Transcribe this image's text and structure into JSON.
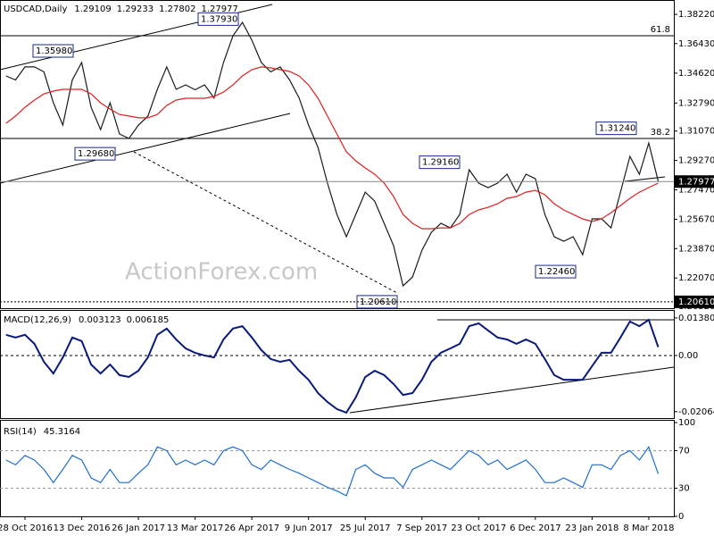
{
  "chart_data": [
    {
      "type": "line",
      "title": "USDCAD,Daily",
      "header_values": [
        1.29109,
        1.29233,
        1.27802,
        1.27977
      ],
      "watermark": "ActionForex.com",
      "categories": [
        null,
        null,
        "28 Oct 2016",
        null,
        null,
        null,
        null,
        null,
        "13 Dec 2016",
        null,
        null,
        null,
        null,
        null,
        "26 Jan 2017",
        null,
        null,
        null,
        null,
        null,
        "13 Mar 2017",
        null,
        null,
        null,
        null,
        null,
        "26 Apr 2017",
        null,
        null,
        null,
        null,
        null,
        "9 Jun 2017",
        null,
        null,
        null,
        null,
        null,
        "25 Jul 2017",
        null,
        null,
        null,
        null,
        null,
        "7 Sep 2017",
        null,
        null,
        null,
        null,
        null,
        "23 Oct 2017",
        null,
        null,
        null,
        null,
        null,
        "6 Dec 2017",
        null,
        null,
        null,
        null,
        null,
        "23 Jan 2018",
        null,
        null,
        null,
        null,
        null,
        "8 Mar 2018",
        null
      ],
      "series": [
        {
          "color": "#1a1a1a",
          "values": [
            1.3445,
            1.342,
            1.35,
            1.35,
            1.347,
            1.328,
            1.3144,
            1.342,
            1.3527,
            1.3253,
            1.3116,
            1.328,
            1.3089,
            1.3062,
            1.3144,
            1.3198,
            1.3363,
            1.35,
            1.3363,
            1.339,
            1.336,
            1.339,
            1.331,
            1.3527,
            1.369,
            1.3773,
            1.3664,
            1.3527,
            1.347,
            1.35,
            1.342,
            1.331,
            1.3144,
            1.3007,
            1.2788,
            1.2596,
            1.246,
            1.2596,
            1.2733,
            1.2678,
            1.2542,
            1.2405,
            1.2159,
            1.2213,
            1.2377,
            1.2487,
            1.2542,
            1.2514,
            1.2596,
            1.287,
            1.2788,
            1.276,
            1.2788,
            1.2843,
            1.2733,
            1.2843,
            1.2815,
            1.2596,
            1.246,
            1.2432,
            1.246,
            1.235,
            1.2569,
            1.2569,
            1.2514,
            1.2733,
            1.2952,
            1.2843,
            1.3034,
            1.28
          ]
        },
        {
          "color": "#e02020",
          "values": [
            1.3155,
            1.3199,
            1.3253,
            1.3297,
            1.3335,
            1.3352,
            1.3363,
            1.3363,
            1.3363,
            1.3335,
            1.328,
            1.3242,
            1.3209,
            1.3199,
            1.3188,
            1.3188,
            1.3209,
            1.3264,
            1.3297,
            1.3308,
            1.3308,
            1.3308,
            1.3319,
            1.3346,
            1.339,
            1.3445,
            1.3483,
            1.35,
            1.3494,
            1.3483,
            1.3472,
            1.3445,
            1.339,
            1.3308,
            1.3199,
            1.3089,
            1.298,
            1.2925,
            1.2881,
            1.2843,
            1.2788,
            1.2706,
            1.2596,
            1.2542,
            1.2509,
            1.2509,
            1.2514,
            1.2514,
            1.2542,
            1.2596,
            1.2624,
            1.264,
            1.2662,
            1.2695,
            1.2706,
            1.2733,
            1.2744,
            1.2717,
            1.2662,
            1.2624,
            1.2596,
            1.2569,
            1.2553,
            1.2569,
            1.2607,
            1.2651,
            1.2695,
            1.2733,
            1.2761,
            1.2788
          ]
        }
      ],
      "ylim": [
        1.2022,
        1.391
      ],
      "yticks": [
        {
          "value": 1.3822,
          "label": "1.38220"
        },
        {
          "value": 1.3643,
          "label": "1.36430"
        },
        {
          "value": 1.3462,
          "label": "1.34620"
        },
        {
          "value": 1.3279,
          "label": "1.32790"
        },
        {
          "value": 1.3107,
          "label": "1.31070"
        },
        {
          "value": 1.2927,
          "label": "1.29270"
        },
        {
          "value": 1.2747,
          "label": "1.27470"
        },
        {
          "value": 1.2567,
          "label": "1.25670"
        },
        {
          "value": 1.2387,
          "label": "1.23870"
        },
        {
          "value": 1.2207,
          "label": "1.22070"
        },
        {
          "value": 1.2032,
          "label": "1.20320"
        }
      ],
      "annotations": [
        {
          "value": 1.3793,
          "label": "1.37930"
        },
        {
          "value": 1.3598,
          "label": "1.35980"
        },
        {
          "value": 1.2968,
          "label": "1.29680"
        },
        {
          "value": 1.2061,
          "label": "1.20610"
        },
        {
          "value": 1.2916,
          "label": "1.29160"
        },
        {
          "value": 1.2246,
          "label": "1.22460"
        },
        {
          "value": 1.3124,
          "label": "1.31240"
        }
      ],
      "levels": [
        {
          "value": 1.3691,
          "label": "61.8"
        },
        {
          "value": 1.3062,
          "label": "38.2"
        }
      ]
    },
    {
      "type": "line",
      "title": "MACD(12,26,9)",
      "header_values": [
        0.003123,
        0.006185
      ],
      "series": [
        {
          "color": "#0a1a7a",
          "values": [
            0.0076,
            0.0066,
            0.0076,
            0.0043,
            -0.0023,
            -0.0066,
            -0.0007,
            0.0066,
            0.0053,
            -0.0033,
            -0.0066,
            -0.0033,
            -0.0072,
            -0.0079,
            -0.0056,
            -0.0007,
            0.0076,
            0.0099,
            0.0059,
            0.0026,
            0.001,
            0,
            -0.0007,
            0.0059,
            0.0099,
            0.0108,
            0.0066,
            0.002,
            -0.0013,
            -0.0023,
            -0.0016,
            -0.0056,
            -0.0089,
            -0.0138,
            -0.0171,
            -0.0197,
            -0.021,
            -0.0154,
            -0.0079,
            -0.0056,
            -0.0072,
            -0.0105,
            -0.0145,
            -0.0138,
            -0.0089,
            -0.0023,
            0.001,
            0.0026,
            0.0043,
            0.0108,
            0.0118,
            0.0092,
            0.0066,
            0.0059,
            0.0043,
            0.0059,
            0.0043,
            -0.0013,
            -0.0072,
            -0.0089,
            -0.0089,
            -0.0089,
            -0.0039,
            0.001,
            0.001,
            0.0066,
            0.0125,
            0.0108,
            0.0131,
            0.0031
          ]
        }
      ],
      "ylim": [
        -0.023,
        0.0164
      ],
      "yticks": [
        0.013802,
        {
          "value": 0,
          "label": "0.00"
        },
        -0.020648
      ]
    },
    {
      "type": "line",
      "title": "RSI(14)",
      "header_values": [
        45.3164
      ],
      "series": [
        {
          "color": "#1e6fd0",
          "values": [
            60,
            55,
            65,
            60,
            50,
            36,
            50,
            65,
            60,
            41,
            36,
            50,
            36,
            36,
            46,
            55,
            74,
            70,
            55,
            60,
            55,
            60,
            55,
            70,
            74,
            70,
            55,
            50,
            60,
            55,
            50,
            46,
            41,
            36,
            31,
            27,
            22,
            50,
            55,
            46,
            41,
            41,
            31,
            50,
            55,
            60,
            55,
            50,
            60,
            70,
            65,
            55,
            60,
            50,
            55,
            60,
            50,
            36,
            36,
            41,
            36,
            31,
            55,
            55,
            50,
            65,
            70,
            60,
            74,
            45.3164
          ]
        }
      ],
      "ylim": [
        0,
        100
      ],
      "yticks": [
        100,
        70,
        30,
        0
      ],
      "dashed_levels": [
        70,
        30
      ]
    }
  ]
}
